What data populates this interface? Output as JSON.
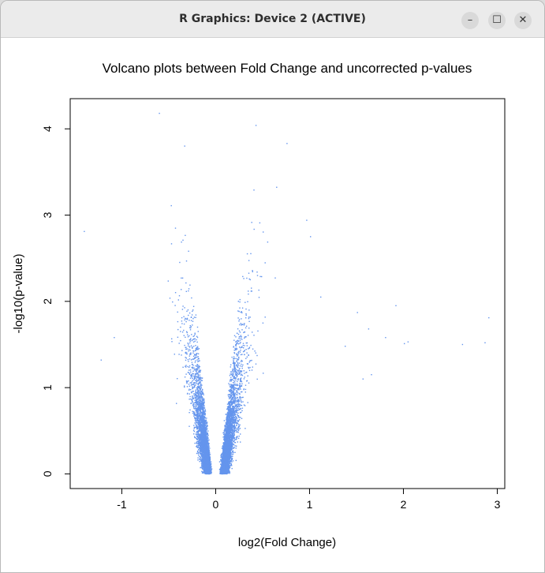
{
  "window": {
    "title": "R Graphics: Device 2 (ACTIVE)",
    "controls": {
      "minimize": "–",
      "maximize": "☐",
      "close": "✕"
    }
  },
  "chart_data": {
    "type": "scatter",
    "title": "Volcano plots between Fold Change and uncorrected p-values",
    "xlabel": "log2(Fold Change)",
    "ylabel": "-log10(p-value)",
    "xlim": [
      -1.55,
      3.08
    ],
    "ylim": [
      -0.17,
      4.35
    ],
    "x_ticks": [
      -1,
      0,
      1,
      2,
      3
    ],
    "y_ticks": [
      0,
      1,
      2,
      3,
      4
    ],
    "x_tick_labels": [
      "-1",
      "0",
      "1",
      "2",
      "3"
    ],
    "y_tick_labels": [
      "0",
      "1",
      "2",
      "3",
      "4"
    ],
    "grid": false,
    "legend": "none",
    "point_color": "#6495ed",
    "series": [
      {
        "description_points": [
          {
            "x": -0.6,
            "y": 4.18
          },
          {
            "x": 0.43,
            "y": 4.04
          },
          {
            "x": -0.33,
            "y": 3.8
          },
          {
            "x": 0.76,
            "y": 3.83
          },
          {
            "x": -1.4,
            "y": 2.81
          },
          {
            "x": -1.08,
            "y": 1.58
          },
          {
            "x": -1.22,
            "y": 1.32
          },
          {
            "x": 1.51,
            "y": 1.87
          },
          {
            "x": 1.63,
            "y": 1.68
          },
          {
            "x": 1.92,
            "y": 1.95
          },
          {
            "x": 1.81,
            "y": 1.58
          },
          {
            "x": 2.01,
            "y": 1.51
          },
          {
            "x": 2.05,
            "y": 1.53
          },
          {
            "x": 2.63,
            "y": 1.5
          },
          {
            "x": 2.87,
            "y": 1.52
          },
          {
            "x": 2.91,
            "y": 1.81
          },
          {
            "x": 1.57,
            "y": 1.1
          },
          {
            "x": 1.66,
            "y": 1.15
          },
          {
            "x": 1.38,
            "y": 1.48
          },
          {
            "x": 1.12,
            "y": 2.05
          },
          {
            "x": 0.97,
            "y": 2.94
          },
          {
            "x": 1.01,
            "y": 2.75
          }
        ]
      }
    ]
  }
}
